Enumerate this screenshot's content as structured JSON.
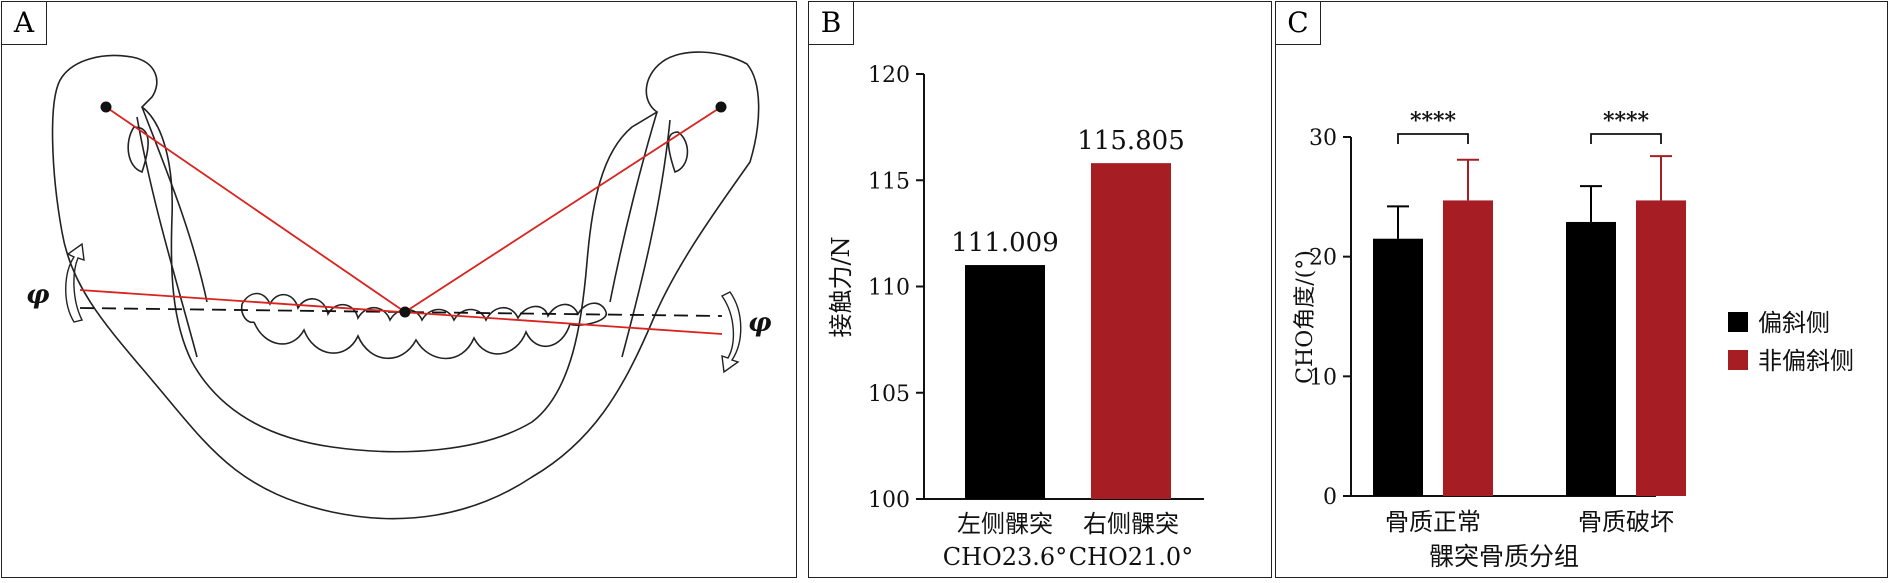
{
  "panels": {
    "a_label": "A",
    "b_label": "B",
    "c_label": "C"
  },
  "diagram": {
    "phi_left": "φ",
    "phi_right": "φ",
    "line_color": "#d8231e"
  },
  "colors": {
    "deviated": "#000000",
    "non_deviated": "#a61e24"
  },
  "chart_b": {
    "type": "bar",
    "ylabel": "接触力/N",
    "ylim": [
      100,
      120
    ],
    "yticks": [
      100,
      105,
      110,
      115,
      120
    ],
    "categories": [
      {
        "line1": "左侧髁突",
        "line2": "CHO23.6°"
      },
      {
        "line1": "右侧髁突",
        "line2": "CHO21.0°"
      }
    ],
    "values": [
      111.009,
      115.805
    ],
    "value_labels": [
      "111.009",
      "115.805"
    ]
  },
  "chart_c": {
    "type": "bar",
    "xlabel": "髁突骨质分组",
    "ylabel": "CHO角度/(°)",
    "ylim": [
      0,
      30
    ],
    "yticks": [
      0,
      10,
      20,
      30
    ],
    "categories": [
      "骨质正常",
      "骨质破坏"
    ],
    "series": [
      {
        "name": "偏斜侧",
        "values": [
          21.5,
          22.9
        ],
        "errors": [
          2.7,
          3.0
        ]
      },
      {
        "name": "非偏斜侧",
        "values": [
          24.7,
          24.7
        ],
        "errors": [
          3.4,
          3.7
        ]
      }
    ],
    "significance": [
      "****",
      "****"
    ],
    "legend_position": "right"
  }
}
